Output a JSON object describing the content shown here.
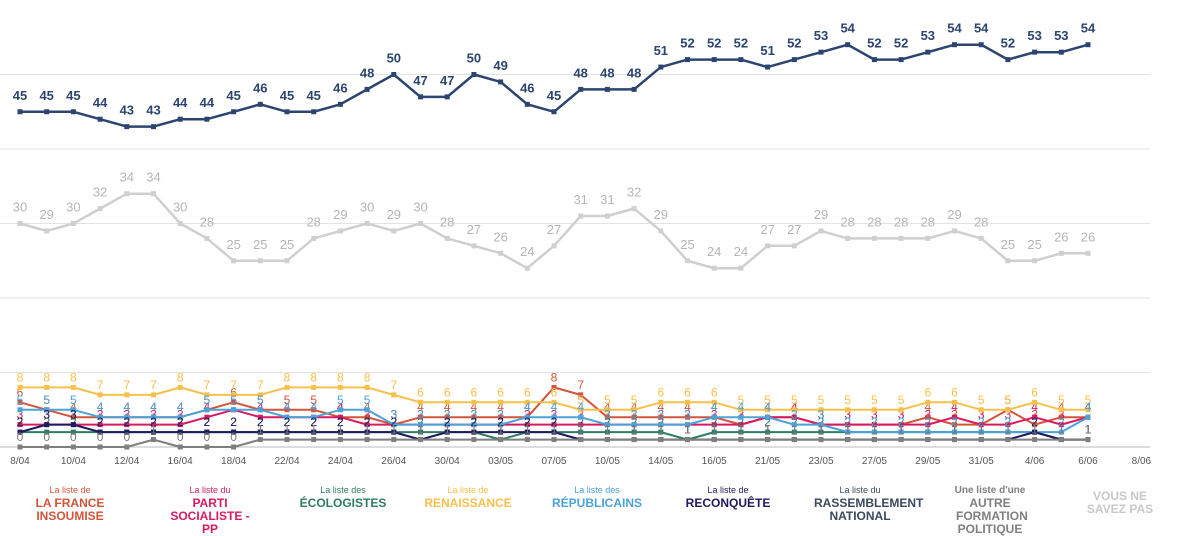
{
  "chart_data": {
    "type": "line",
    "categories": [
      "8/04",
      null,
      "10/04",
      null,
      "12/04",
      null,
      "16/04",
      null,
      "18/04",
      null,
      "22/04",
      null,
      "24/04",
      null,
      "26/04",
      null,
      "30/04",
      null,
      "03/05",
      null,
      "07/05",
      null,
      "10/05",
      null,
      "14/05",
      null,
      "16/05",
      null,
      "21/05",
      null,
      "23/05",
      null,
      "27/05",
      null,
      "29/05",
      null,
      "31/05",
      null,
      "4/06",
      null,
      "6/06",
      null,
      "8/06"
    ],
    "ylim": [
      0,
      60
    ],
    "yticks": [
      0,
      10,
      20,
      30,
      40,
      50
    ],
    "grid": true,
    "series": [
      {
        "legend_prefix": "La liste de",
        "name": "LA FRANCE INSOUMISE",
        "color": "#d2553a",
        "values": [
          6,
          5,
          4,
          4,
          4,
          4,
          4,
          5,
          6,
          5,
          5,
          5,
          4,
          4,
          3,
          4,
          4,
          4,
          4,
          4,
          8,
          7,
          4,
          4,
          4,
          4,
          4,
          3,
          4,
          4,
          3,
          3,
          3,
          3,
          4,
          3,
          3,
          5,
          3,
          4,
          4,
          null,
          null
        ]
      },
      {
        "legend_prefix": "La liste du",
        "name": "PARTI SOCIALISTE - PP",
        "color": "#d81b60",
        "values": [
          3,
          3,
          3,
          3,
          3,
          3,
          3,
          4,
          5,
          4,
          4,
          4,
          4,
          3,
          3,
          3,
          3,
          3,
          3,
          3,
          3,
          3,
          3,
          3,
          3,
          3,
          3,
          3,
          4,
          4,
          3,
          3,
          3,
          3,
          3,
          4,
          3,
          3,
          4,
          3,
          4,
          null,
          null
        ]
      },
      {
        "legend_prefix": "La liste des",
        "name": "ÉCOLOGISTES",
        "color": "#2e7d62",
        "values": [
          2,
          2,
          2,
          2,
          2,
          2,
          2,
          2,
          2,
          2,
          2,
          2,
          2,
          2,
          2,
          2,
          2,
          2,
          1,
          2,
          2,
          2,
          2,
          2,
          2,
          1,
          2,
          2,
          2,
          2,
          2,
          2,
          2,
          2,
          2,
          2,
          2,
          2,
          2,
          1,
          1,
          null,
          null
        ]
      },
      {
        "legend_prefix": "La liste de",
        "name": "RENAISSANCE",
        "color": "#f7c04a",
        "values": [
          8,
          8,
          8,
          7,
          7,
          7,
          8,
          7,
          7,
          7,
          8,
          8,
          8,
          8,
          7,
          6,
          6,
          6,
          6,
          6,
          6,
          5,
          5,
          5,
          6,
          6,
          6,
          5,
          5,
          5,
          5,
          5,
          5,
          5,
          6,
          6,
          5,
          5,
          6,
          5,
          5,
          null,
          null
        ]
      },
      {
        "legend_prefix": "La liste des",
        "name": "RÉPUBLICAINS",
        "color": "#4ba3d9",
        "values": [
          5,
          5,
          5,
          4,
          4,
          4,
          4,
          5,
          5,
          5,
          4,
          4,
          5,
          5,
          3,
          3,
          3,
          3,
          3,
          4,
          4,
          4,
          3,
          3,
          3,
          3,
          4,
          4,
          4,
          3,
          3,
          2,
          2,
          2,
          2,
          2,
          2,
          2,
          2,
          2,
          4,
          null,
          null
        ]
      },
      {
        "legend_prefix": "La liste de",
        "name": "RECONQUÊTE",
        "color": "#1f1a5c",
        "values": [
          2,
          3,
          3,
          2,
          2,
          2,
          2,
          2,
          2,
          2,
          2,
          2,
          2,
          2,
          2,
          1,
          2,
          2,
          2,
          2,
          2,
          1,
          1,
          1,
          1,
          1,
          1,
          1,
          1,
          1,
          1,
          1,
          1,
          1,
          1,
          1,
          1,
          1,
          2,
          1,
          1,
          null,
          null
        ]
      },
      {
        "legend_prefix": "La liste du",
        "name": "RASSEMBLEMENT NATIONAL",
        "color": "#2c4570",
        "values": [
          45,
          45,
          45,
          44,
          43,
          43,
          44,
          44,
          45,
          46,
          45,
          45,
          46,
          48,
          50,
          47,
          47,
          50,
          49,
          46,
          45,
          48,
          48,
          48,
          51,
          52,
          52,
          52,
          51,
          52,
          53,
          54,
          52,
          52,
          53,
          54,
          54,
          52,
          53,
          53,
          54,
          null,
          null
        ]
      },
      {
        "legend_prefix": "Une liste d'une",
        "name": "AUTRE FORMATION POLITIQUE",
        "color": "#7f7f7f",
        "values": [
          0,
          0,
          0,
          0,
          0,
          1,
          0,
          0,
          0,
          1,
          1,
          1,
          1,
          1,
          1,
          1,
          1,
          1,
          1,
          1,
          1,
          1,
          1,
          1,
          1,
          1,
          1,
          1,
          1,
          1,
          1,
          1,
          1,
          1,
          1,
          1,
          1,
          1,
          1,
          1,
          1,
          null,
          null
        ]
      },
      {
        "name": "VOUS NE SAVEZ PAS",
        "color": "#c8c8c8",
        "values": [
          30,
          29,
          30,
          32,
          34,
          34,
          30,
          28,
          25,
          25,
          25,
          28,
          29,
          30,
          29,
          30,
          28,
          27,
          26,
          24,
          27,
          31,
          31,
          32,
          29,
          25,
          24,
          24,
          27,
          27,
          29,
          28,
          28,
          28,
          28,
          29,
          28,
          25,
          25,
          26,
          26,
          null,
          null
        ]
      }
    ]
  }
}
